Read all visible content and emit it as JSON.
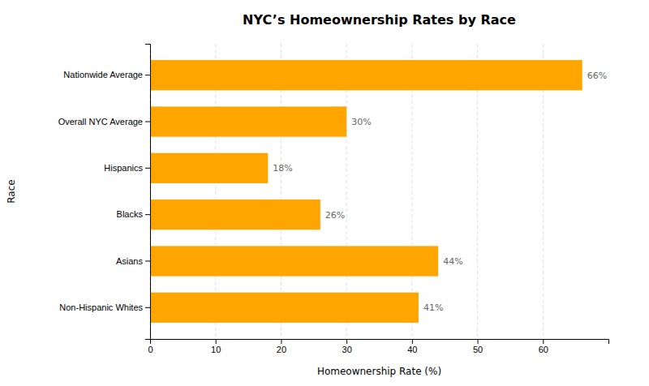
{
  "chart_data": {
    "type": "bar",
    "orientation": "horizontal",
    "title": "NYC’s Homeownership Rates by Race",
    "xlabel": "Homeownership Rate (%)",
    "ylabel": "Race",
    "categories": [
      "Nationwide Average",
      "Overall NYC Average",
      "Hispanics",
      "Blacks",
      "Asians",
      "Non-Hispanic Whites"
    ],
    "values": [
      66,
      30,
      18,
      26,
      44,
      41
    ],
    "value_labels": [
      "66%",
      "30%",
      "18%",
      "26%",
      "44%",
      "41%"
    ],
    "data_labels": true,
    "color": "#FFA500",
    "xlim": [
      0,
      70
    ],
    "xticks": [
      0,
      10,
      20,
      30,
      40,
      50,
      60
    ],
    "grid": true
  }
}
